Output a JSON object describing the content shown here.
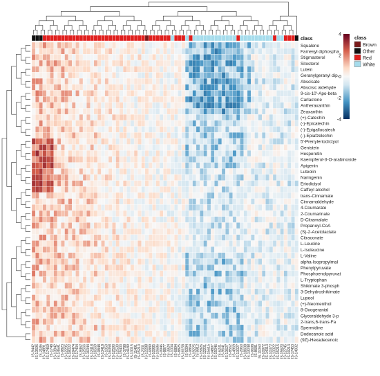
{
  "chart_data": {
    "type": "heatmap",
    "title": "",
    "class_annotation_label": "class",
    "legend": {
      "title": "class",
      "entries": [
        {
          "name": "Brown",
          "color": "#7a1a1a"
        },
        {
          "name": "Other",
          "color": "#111111"
        },
        {
          "name": "Red",
          "color": "#e0201e"
        },
        {
          "name": "White",
          "color": "#a6dcec"
        }
      ]
    },
    "colorbar": {
      "ticks": [
        "4",
        "2",
        "0",
        "-2",
        "-4"
      ],
      "min": -4,
      "max": 4,
      "low_color": "#053061",
      "mid_color": "#f7f7f7",
      "high_color": "#b2182b"
    },
    "rows": [
      "Squalene",
      "Farnesyl diphospha",
      "Stigmasterol",
      "Sitosterol",
      "Lutein",
      "Geranylgeranyl dip.",
      "Abscisate",
      "Abscisic aldehyde",
      "9-cis-10'-Apo-beta",
      "Carlactone",
      "Antheraxanthin",
      "Zeaxanthin",
      "(+)-Catechin",
      "(-)-Epicatechin",
      "(-)-Epigallocatech",
      "(-)-Epiafzelechin",
      "5'-Prenylerioclictyol",
      "Genistein",
      "Hesperetin",
      "Kaempferol-3-O-arabinoside",
      "Apigenin",
      "Luteolin",
      "Naringenin",
      "Eriodictyol",
      "Caffeyl alcohol",
      "trans-Cinnamate",
      "Cinnamaldehyde",
      "4-Coumarate",
      "2-Coumarinate",
      "D-Citramalate",
      "Propanoyl-CoA",
      "(S)-2-Acetolactate",
      "Citraconate",
      "L-Leucine",
      "L-Isoleucine",
      "L-Valine",
      "alpha-Isopropylmal",
      "Phenylpyruvate",
      "Phosphoenolpyruvat",
      "L-Tryptophan",
      "Shikimate 3-phosph",
      "3-Dehydroshikimate",
      "Lupeol",
      "(+)-Neomenthol",
      "8-Oxogeranial",
      "Glyceraldehyde 3-p",
      "2-trans,6-trans-Fa",
      "Spermidine",
      "Dodecanoic acid",
      "(9Z)-Hexadecenoic"
    ],
    "columns": [
      "IS-9442",
      "IS-13596",
      "IS-2186",
      "IS-14891",
      "IS-17469",
      "IS-1748",
      "IS-13942",
      "IS-14591",
      "IS-9823",
      "IS-12295",
      "IS-18022",
      "IS-19474",
      "IS-17434",
      "IS-9462",
      "IS-12566",
      "IS-16344",
      "IS-12418",
      "IS-16569",
      "IS-9848",
      "IS-13418",
      "IS-1050",
      "IS-16358",
      "IS-12590",
      "IS-12530",
      "IS-15400",
      "IS-3788",
      "IS-14189",
      "IS-13015",
      "IS-11491",
      "IS-15210",
      "IS-2331",
      "IS-12288",
      "IS-6889",
      "IS-10985",
      "IS-10686",
      "IS-9946",
      "IS-8877",
      "IS-3924",
      "IS-1004",
      "IS-6894",
      "IS-8825",
      "IS-16158",
      "IS-5094",
      "IS-9864",
      "IS-19225",
      "IS-9912",
      "IS-15826",
      "IS-12201",
      "IS-15615",
      "IS-14897",
      "IS-15046",
      "IS-6231",
      "IS-9641",
      "IS-13627",
      "IS-8562",
      "IS-4969",
      "IS-13027",
      "IS-2960",
      "IS-18608",
      "IS-13048",
      "IS-9698",
      "IS-8681",
      "IS-11060",
      "IS-10972",
      "IS-14313",
      "IS-10372",
      "IS-13322",
      "IS-15215",
      "IS-15620",
      "IS-12745",
      "IS-19213",
      "IS-17453",
      "IS-14932"
    ],
    "column_classes": [
      "Other",
      "Other",
      "Other",
      "Red",
      "Red",
      "Red",
      "Red",
      "Red",
      "Red",
      "Red",
      "Red",
      "Red",
      "Red",
      "Red",
      "Red",
      "Red",
      "Red",
      "Red",
      "Red",
      "Red",
      "Red",
      "Red",
      "Red",
      "Red",
      "Red",
      "Red",
      "Red",
      "Red",
      "Red",
      "Red",
      "Red",
      "Brown",
      "Red",
      "Red",
      "Red",
      "Red",
      "Red",
      "Red",
      "White",
      "Red",
      "Red",
      "Red",
      "White",
      "Red",
      "White",
      "White",
      "White",
      "White",
      "White",
      "White",
      "White",
      "White",
      "White",
      "White",
      "White",
      "White",
      "Red",
      "White",
      "White",
      "White",
      "White",
      "White",
      "White",
      "White",
      "White",
      "White",
      "Red",
      "White",
      "White",
      "Red",
      "Red",
      "Red",
      "Other"
    ],
    "values": []
  }
}
